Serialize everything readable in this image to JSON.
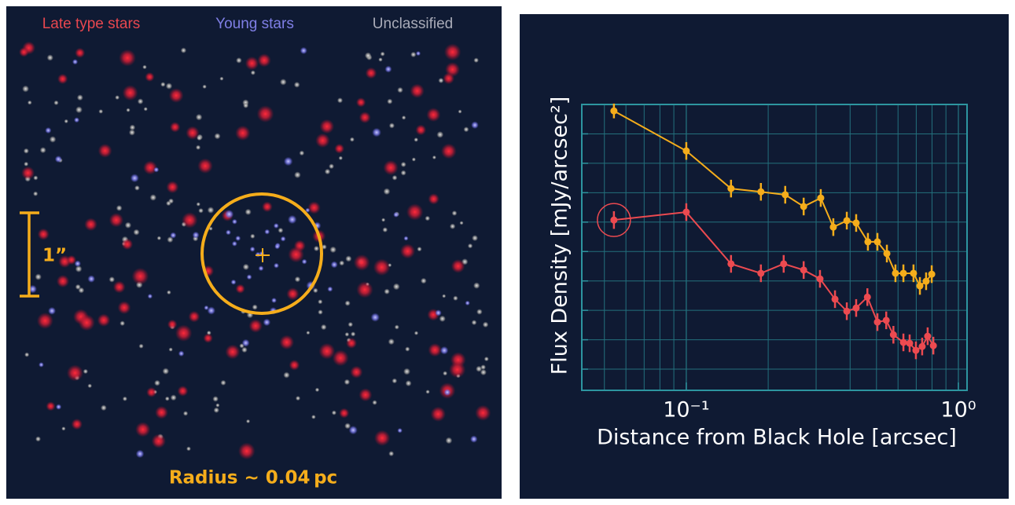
{
  "image_panel": {
    "legend": [
      {
        "label": "Late type stars",
        "color": "#e8474f"
      },
      {
        "label": "Young stars",
        "color": "#7f7fe6"
      },
      {
        "label": "Unclassified",
        "color": "#a9abb8"
      }
    ],
    "scale_label": "1”",
    "radius_label": "Radius ~ 0.04 pc"
  },
  "chart_data": {
    "type": "line",
    "xlabel": "Distance from Black Hole [arcsec]",
    "ylabel": "Flux Density  [mJy/arcsec²]",
    "x_log": true,
    "grid": true,
    "xlim": [
      0.0413,
      1.076
    ],
    "xticks": [
      {
        "value": 0.1,
        "label": "10⁻¹"
      },
      {
        "value": 1,
        "label": "10⁰"
      }
    ],
    "xgrid": [
      0.05,
      0.06,
      0.07,
      0.08,
      0.09,
      0.2,
      0.3,
      0.4,
      0.5,
      0.6,
      0.7,
      0.8,
      0.9
    ],
    "ylim": [
      -0.72,
      9
    ],
    "yticks": [
      0,
      1,
      2,
      3,
      4,
      5,
      6,
      7,
      8
    ],
    "series": [
      {
        "color": "#f5ad1b",
        "x": [
          0.0542,
          0.1,
          0.146,
          0.188,
          0.231,
          0.27,
          0.312,
          0.347,
          0.389,
          0.421,
          0.465,
          0.504,
          0.546,
          0.587,
          0.628,
          0.684,
          0.722,
          0.761,
          0.798
        ],
        "values": [
          8.78,
          7.42,
          6.14,
          6.03,
          5.93,
          5.53,
          5.82,
          4.83,
          5.05,
          4.97,
          4.33,
          4.33,
          3.93,
          3.26,
          3.26,
          3.26,
          2.83,
          2.99,
          3.23
        ],
        "errors": [
          0.25,
          0.3,
          0.3,
          0.3,
          0.3,
          0.3,
          0.3,
          0.3,
          0.3,
          0.3,
          0.3,
          0.3,
          0.3,
          0.3,
          0.3,
          0.3,
          0.3,
          0.3,
          0.3
        ]
      },
      {
        "color": "#ec4a50",
        "x": [
          0.0542,
          0.1,
          0.146,
          0.188,
          0.228,
          0.27,
          0.31,
          0.352,
          0.389,
          0.421,
          0.463,
          0.504,
          0.543,
          0.577,
          0.628,
          0.662,
          0.698,
          0.736,
          0.771,
          0.809
        ],
        "values": [
          5.07,
          5.34,
          3.58,
          3.26,
          3.58,
          3.37,
          3.07,
          2.38,
          1.97,
          2.08,
          2.45,
          1.6,
          1.66,
          1.17,
          0.91,
          0.88,
          0.64,
          0.77,
          1.12,
          0.8
        ],
        "errors": [
          0.3,
          0.3,
          0.3,
          0.3,
          0.3,
          0.3,
          0.3,
          0.3,
          0.3,
          0.3,
          0.3,
          0.3,
          0.3,
          0.3,
          0.3,
          0.3,
          0.3,
          0.3,
          0.3,
          0.3
        ]
      }
    ]
  }
}
